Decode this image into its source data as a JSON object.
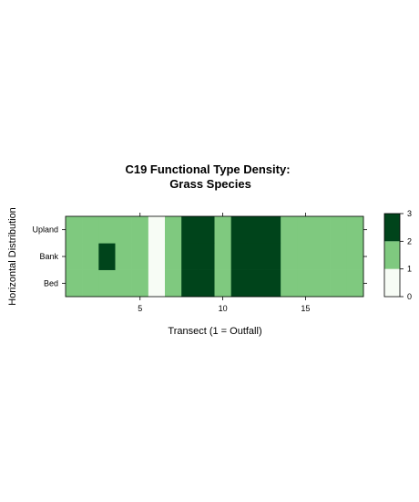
{
  "chart_data": {
    "type": "heatmap",
    "title_line1": "C19 Functional Type Density:",
    "title_line2": "Grass Species",
    "xlabel": "Transect (1 = Outfall)",
    "ylabel": "Horizontal Distribution",
    "x_ticks": [
      5,
      10,
      15
    ],
    "xlim": [
      0.5,
      18.5
    ],
    "y_categories": [
      "Bed",
      "Bank",
      "Upland"
    ],
    "values": {
      "Upland": [
        1,
        1,
        1,
        1,
        1,
        0,
        1,
        2,
        2,
        1,
        2,
        2,
        2,
        1,
        1,
        1,
        1,
        1
      ],
      "Bank": [
        1,
        1,
        2,
        1,
        1,
        0,
        1,
        2,
        2,
        1,
        2,
        2,
        2,
        1,
        1,
        1,
        1,
        1
      ],
      "Bed": [
        1,
        1,
        1,
        1,
        1,
        0,
        1,
        2,
        2,
        1,
        2,
        2,
        2,
        1,
        1,
        1,
        1,
        1
      ]
    },
    "colorkey": {
      "ticks": [
        0,
        1,
        2,
        3
      ],
      "breaks": [
        0,
        1,
        2,
        3
      ],
      "colors": [
        "#f7fcf5",
        "#7fc97f",
        "#00441b"
      ]
    }
  }
}
